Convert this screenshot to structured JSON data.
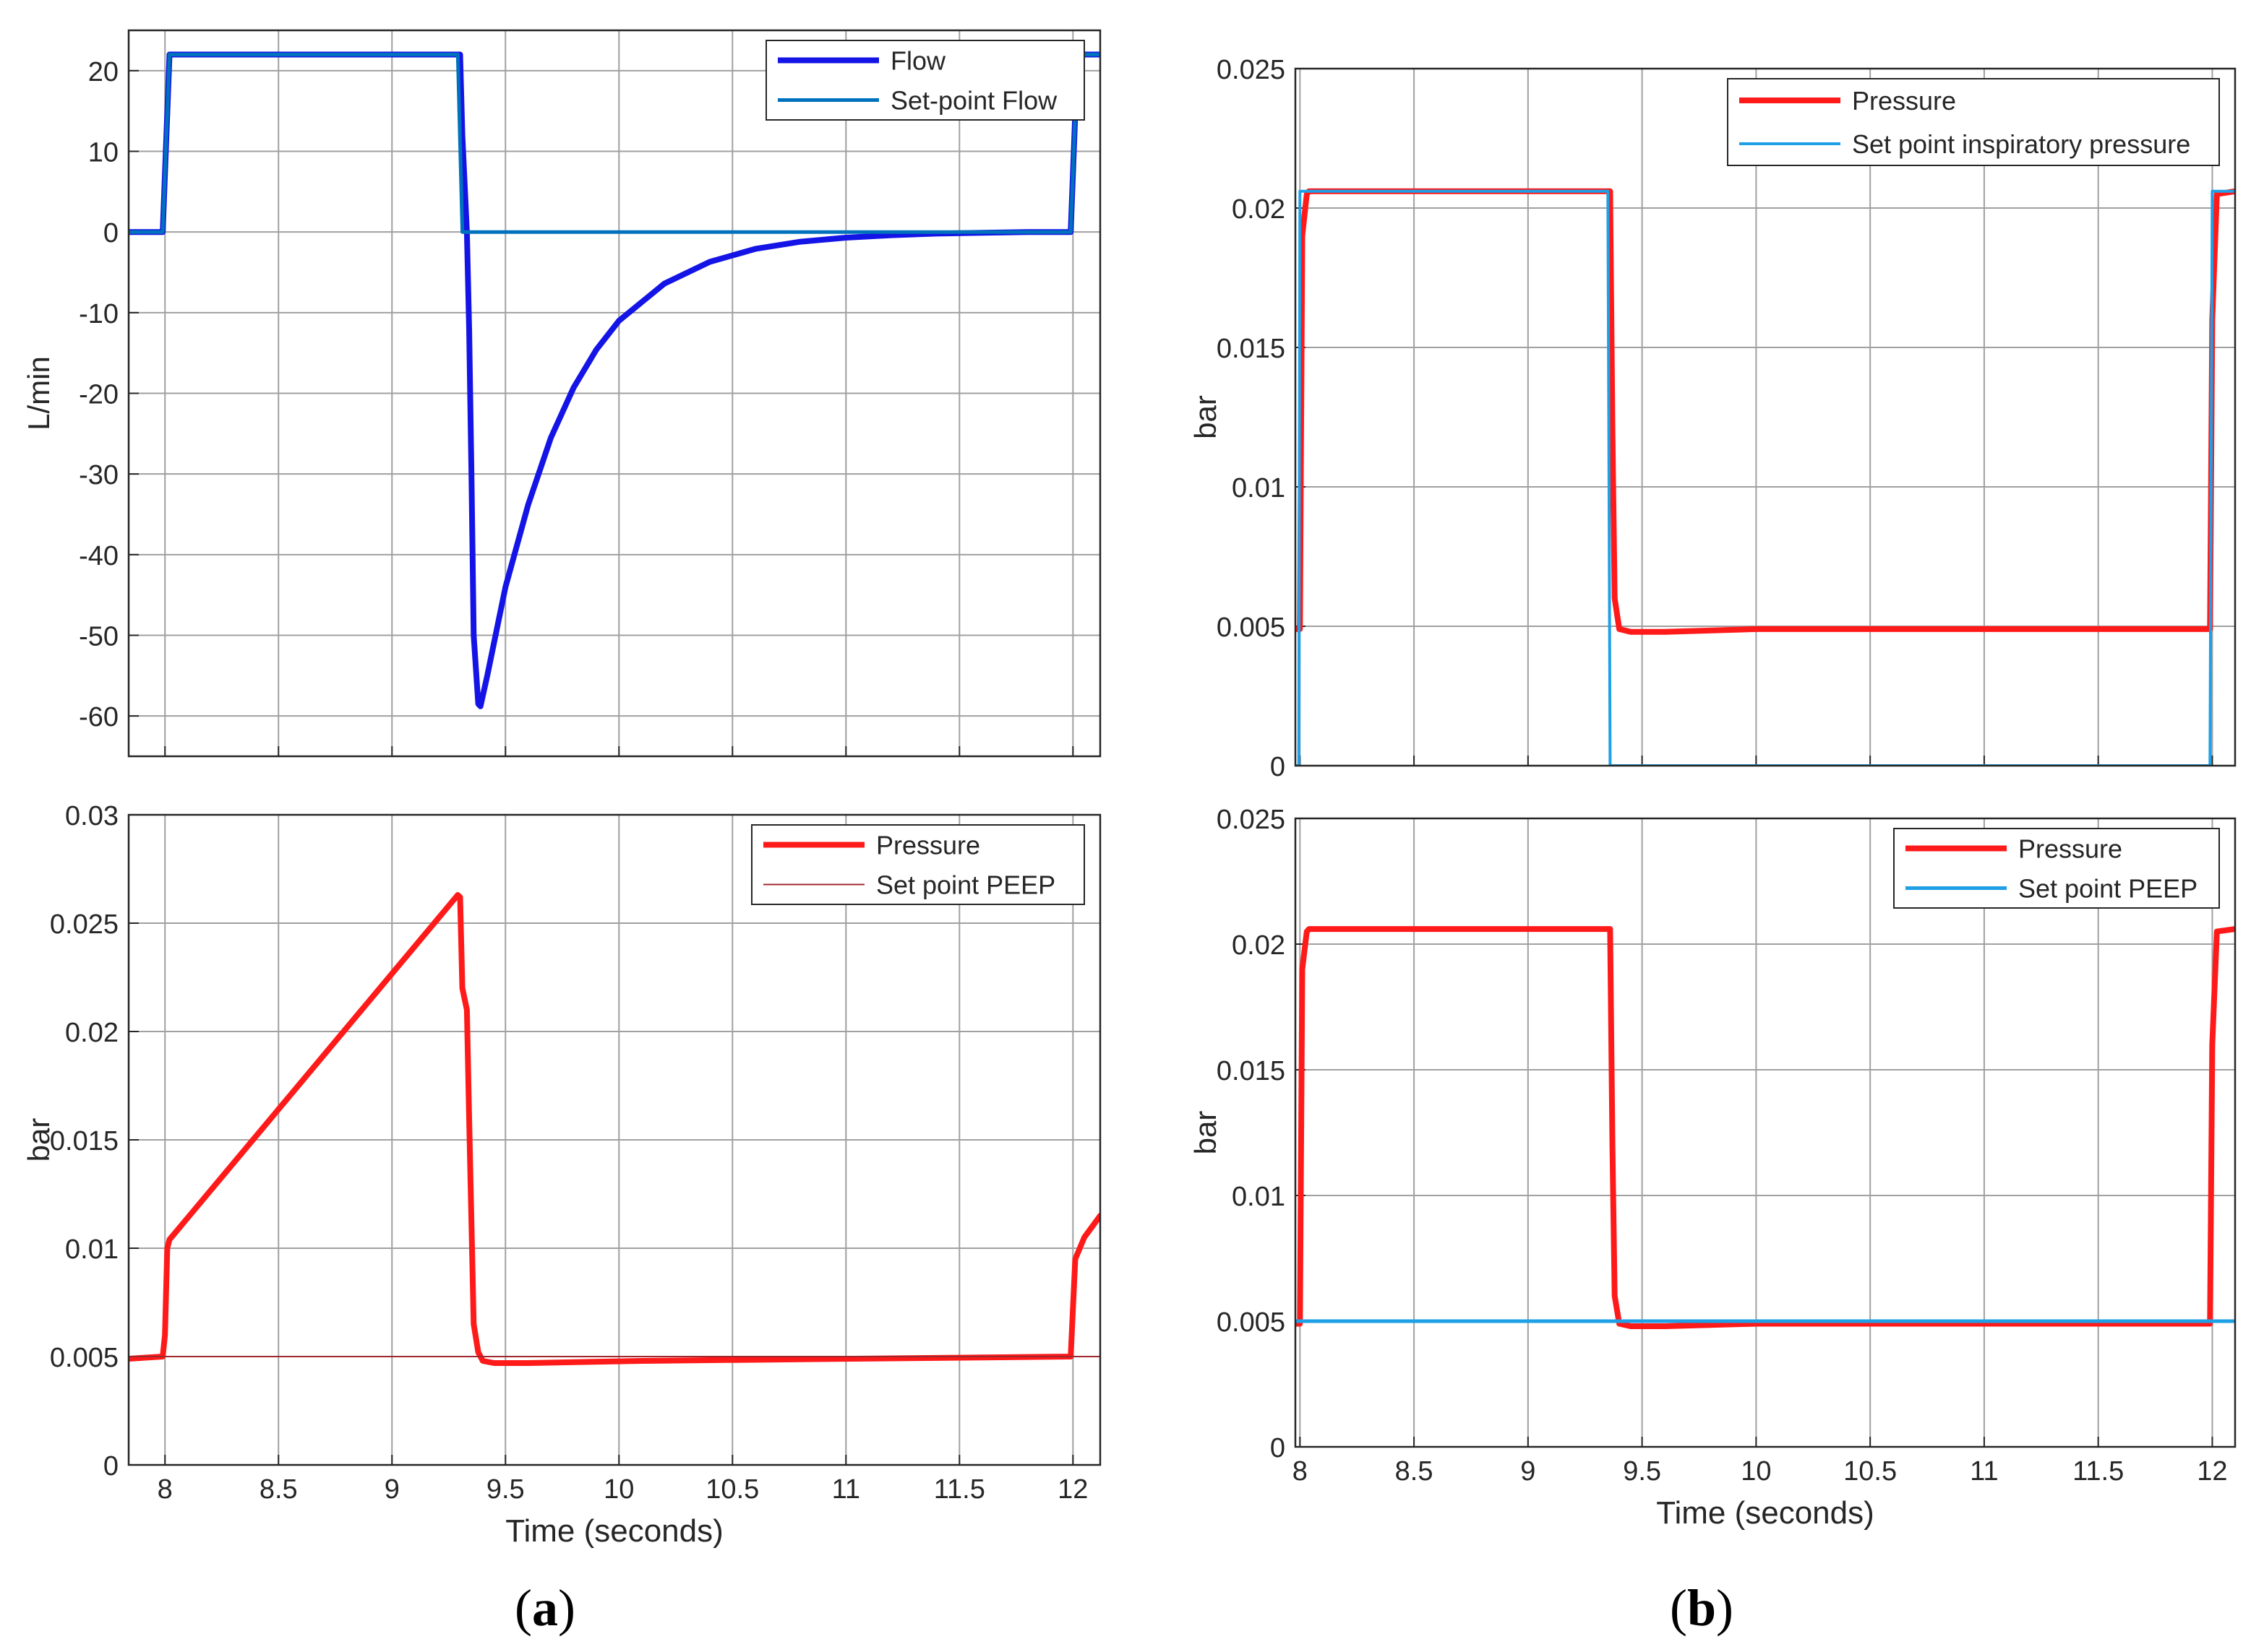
{
  "figure": {
    "panel_labels": [
      {
        "open": "(",
        "letter": "a",
        "close": ")"
      },
      {
        "open": "(",
        "letter": "b",
        "close": ")"
      }
    ]
  },
  "chart_data": [
    {
      "id": "a-flow",
      "type": "line",
      "xlabel": "",
      "ylabel": "L/min",
      "xlim": [
        7.84,
        12.12
      ],
      "ylim": [
        -65,
        25
      ],
      "xticks": [
        8,
        8.5,
        9,
        9.5,
        10,
        10.5,
        11,
        11.5,
        12
      ],
      "yticks": [
        -60,
        -50,
        -40,
        -30,
        -20,
        -10,
        0,
        10,
        20
      ],
      "ytick_labels": [
        "-60",
        "-50",
        "-40",
        "-30",
        "-20",
        "-10",
        "0",
        "10",
        "20"
      ],
      "show_xtick_labels": false,
      "grid": true,
      "legend": "top-right",
      "series": [
        {
          "name": "Flow",
          "color": "#1414e6",
          "width": 8,
          "x": [
            7.84,
            7.99,
            8.02,
            9.3,
            9.31,
            9.33,
            9.34,
            9.35,
            9.36,
            9.38,
            9.39,
            9.42,
            9.5,
            9.6,
            9.7,
            9.8,
            9.9,
            10.0,
            10.2,
            10.4,
            10.6,
            10.8,
            11.0,
            11.2,
            11.4,
            11.6,
            11.8,
            11.99,
            12.02,
            12.12
          ],
          "y": [
            0,
            0,
            22,
            22,
            12,
            0,
            -12,
            -30,
            -50,
            -58.5,
            -58.8,
            -55,
            -44,
            -33.8,
            -25.5,
            -19.3,
            -14.6,
            -11,
            -6.4,
            -3.7,
            -2.1,
            -1.2,
            -0.7,
            -0.4,
            -0.2,
            -0.1,
            0,
            0,
            22,
            22
          ]
        },
        {
          "name": "Set-point Flow",
          "color": "#0072bd",
          "width": 5,
          "x": [
            7.84,
            7.99,
            8.02,
            9.29,
            9.31,
            11.99,
            12.02,
            12.12
          ],
          "y": [
            0,
            0,
            22,
            22,
            0,
            0,
            22,
            22
          ]
        }
      ]
    },
    {
      "id": "a-pressure",
      "type": "line",
      "xlabel": "Time (seconds)",
      "ylabel": "bar",
      "xlim": [
        7.84,
        12.12
      ],
      "ylim": [
        0,
        0.03
      ],
      "xticks": [
        8,
        8.5,
        9,
        9.5,
        10,
        10.5,
        11,
        11.5,
        12
      ],
      "xtick_labels": [
        "8",
        "8.5",
        "9",
        "9.5",
        "10",
        "10.5",
        "11",
        "11.5",
        "12"
      ],
      "yticks": [
        0,
        0.005,
        0.01,
        0.015,
        0.02,
        0.025,
        0.03
      ],
      "ytick_labels": [
        "0",
        "0.005",
        "0.01",
        "0.015",
        "0.02",
        "0.025",
        "0.03"
      ],
      "show_xtick_labels": true,
      "grid": true,
      "legend": "top-right",
      "series": [
        {
          "name": "Pressure",
          "color": "#ff1a1a",
          "width": 8,
          "x": [
            7.84,
            7.99,
            8.0,
            8.01,
            8.02,
            9.29,
            9.3,
            9.31,
            9.33,
            9.34,
            9.36,
            9.38,
            9.4,
            9.45,
            9.6,
            10.1,
            11.98,
            11.99,
            12.01,
            12.05,
            12.12
          ],
          "y": [
            0.0049,
            0.005,
            0.006,
            0.01,
            0.0104,
            0.0263,
            0.0262,
            0.022,
            0.021,
            0.016,
            0.0065,
            0.0052,
            0.0048,
            0.0047,
            0.0047,
            0.0048,
            0.005,
            0.005,
            0.0095,
            0.0105,
            0.0115
          ]
        },
        {
          "name": "Set point PEEP",
          "color": "#a0282d",
          "width": 2,
          "x": [
            7.84,
            12.12
          ],
          "y": [
            0.005,
            0.005
          ]
        }
      ]
    },
    {
      "id": "b-pressure-insp",
      "type": "line",
      "xlabel": "",
      "ylabel": "bar",
      "xlim": [
        7.98,
        12.1
      ],
      "ylim": [
        0,
        0.025
      ],
      "xticks": [
        8,
        8.5,
        9,
        9.5,
        10,
        10.5,
        11,
        11.5,
        12
      ],
      "yticks": [
        0,
        0.005,
        0.01,
        0.015,
        0.02,
        0.025
      ],
      "ytick_labels": [
        "0",
        "0.005",
        "0.01",
        "0.015",
        "0.02",
        "0.025"
      ],
      "show_xtick_labels": false,
      "grid": true,
      "legend": "top-right",
      "series": [
        {
          "name": "Pressure",
          "color": "#ff1a1a",
          "width": 8,
          "x": [
            7.98,
            8.0,
            8.01,
            8.03,
            8.04,
            9.35,
            9.36,
            9.37,
            9.38,
            9.4,
            9.45,
            9.6,
            10.0,
            11.99,
            12.0,
            12.02,
            12.1
          ],
          "y": [
            0.0049,
            0.0049,
            0.019,
            0.0205,
            0.0206,
            0.0206,
            0.0206,
            0.012,
            0.006,
            0.0049,
            0.0048,
            0.0048,
            0.0049,
            0.0049,
            0.016,
            0.0205,
            0.0206
          ]
        },
        {
          "name": "Set point inspiratory pressure",
          "color": "#1ea0e6",
          "width": 4,
          "x": [
            7.98,
            7.995,
            8.0,
            9.35,
            9.36,
            11.99,
            12.0,
            12.1
          ],
          "y": [
            0,
            0,
            0.0206,
            0.0206,
            0,
            0,
            0.0206,
            0.0206
          ]
        }
      ]
    },
    {
      "id": "b-pressure-peep",
      "type": "line",
      "xlabel": "Time (seconds)",
      "ylabel": "bar",
      "xlim": [
        7.98,
        12.1
      ],
      "ylim": [
        0,
        0.025
      ],
      "xticks": [
        8,
        8.5,
        9,
        9.5,
        10,
        10.5,
        11,
        11.5,
        12
      ],
      "xtick_labels": [
        "8",
        "8.5",
        "9",
        "9.5",
        "10",
        "10.5",
        "11",
        "11.5",
        "12"
      ],
      "yticks": [
        0,
        0.005,
        0.01,
        0.015,
        0.02,
        0.025
      ],
      "ytick_labels": [
        "0",
        "0.005",
        "0.01",
        "0.015",
        "0.02",
        "0.025"
      ],
      "show_xtick_labels": true,
      "grid": true,
      "legend": "top-right",
      "series": [
        {
          "name": "Pressure",
          "color": "#ff1a1a",
          "width": 8,
          "x": [
            7.98,
            8.0,
            8.01,
            8.03,
            8.04,
            9.35,
            9.36,
            9.37,
            9.38,
            9.4,
            9.45,
            9.6,
            10.0,
            11.99,
            12.0,
            12.02,
            12.1
          ],
          "y": [
            0.0049,
            0.0049,
            0.019,
            0.0205,
            0.0206,
            0.0206,
            0.0206,
            0.012,
            0.006,
            0.0049,
            0.0048,
            0.0048,
            0.0049,
            0.0049,
            0.016,
            0.0205,
            0.0206
          ]
        },
        {
          "name": "Set point PEEP",
          "color": "#1ea0e6",
          "width": 5,
          "x": [
            7.98,
            12.1
          ],
          "y": [
            0.005,
            0.005
          ]
        }
      ]
    }
  ]
}
